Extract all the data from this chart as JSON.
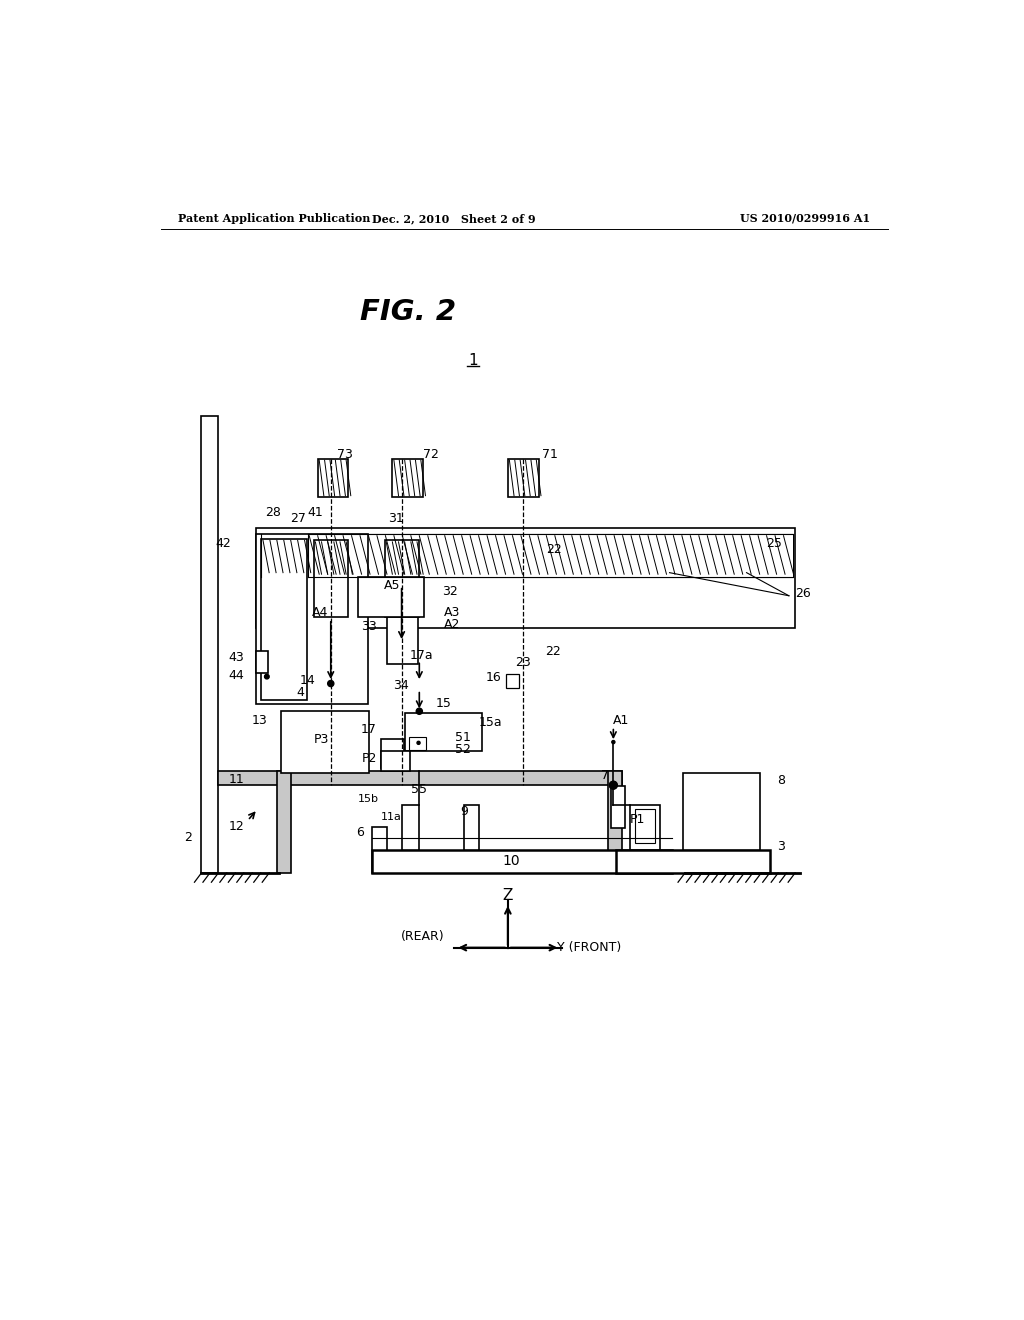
{
  "header_left": "Patent Application Publication",
  "header_center": "Dec. 2, 2010   Sheet 2 of 9",
  "header_right": "US 2010/0299916 A1",
  "fig_title": "FIG. 2",
  "background": "#ffffff"
}
